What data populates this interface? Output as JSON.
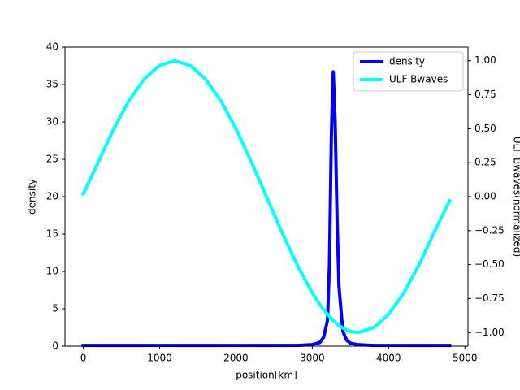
{
  "chart_data": {
    "type": "line",
    "x_label": "position[km]",
    "y_label": "density",
    "y2_label": "ULF Bwaves(normalized)",
    "x": [
      0,
      200,
      400,
      600,
      800,
      1000,
      1200,
      1400,
      1600,
      1800,
      2000,
      2200,
      2400,
      2600,
      2800,
      3000,
      3100,
      3150,
      3200,
      3225,
      3250,
      3275,
      3300,
      3325,
      3350,
      3400,
      3450,
      3500,
      3600,
      3800,
      4000,
      4200,
      4400,
      4600,
      4800
    ],
    "series": [
      {
        "name": "density",
        "color": "#0000ff",
        "axis": "y",
        "values": [
          0.1,
          0.1,
          0.1,
          0.1,
          0.1,
          0.1,
          0.1,
          0.1,
          0.1,
          0.1,
          0.1,
          0.1,
          0.1,
          0.1,
          0.1,
          0.2,
          0.5,
          1.2,
          3.5,
          11,
          28,
          36.7,
          30,
          17,
          8,
          2,
          0.8,
          0.4,
          0.2,
          0.1,
          0.1,
          0.1,
          0.1,
          0.1,
          0.1
        ]
      },
      {
        "name": "ULF Bwaves",
        "color": "#00ffff",
        "axis": "y2",
        "values": [
          0.02,
          0.259,
          0.5,
          0.707,
          0.866,
          0.966,
          1,
          0.966,
          0.866,
          0.707,
          0.5,
          0.259,
          0,
          -0.259,
          -0.5,
          -0.707,
          -0.793,
          -0.831,
          -0.866,
          -0.882,
          -0.897,
          -0.911,
          -0.924,
          -0.936,
          -0.947,
          -0.966,
          -0.981,
          -0.991,
          -1,
          -0.966,
          -0.866,
          -0.707,
          -0.5,
          -0.259,
          -0.03
        ]
      }
    ],
    "xlim": [
      -240,
      5040
    ],
    "xticks": [
      0,
      1000,
      2000,
      3000,
      4000,
      5000
    ],
    "ylim": [
      0,
      40
    ],
    "yticks": [
      0,
      5,
      10,
      15,
      20,
      25,
      30,
      35,
      40
    ],
    "y2lim": [
      -1.1,
      1.1
    ],
    "y2ticks": [
      {
        "value": -1,
        "label": "−1.00"
      },
      {
        "value": -0.75,
        "label": "−0.75"
      },
      {
        "value": -0.5,
        "label": "−0.50"
      },
      {
        "value": -0.25,
        "label": "−0.25"
      },
      {
        "value": 0,
        "label": "0.00"
      },
      {
        "value": 0.25,
        "label": "0.25"
      },
      {
        "value": 0.5,
        "label": "0.50"
      },
      {
        "value": 0.75,
        "label": "0.75"
      },
      {
        "value": 1,
        "label": "1.00"
      }
    ],
    "legend": "upper right"
  }
}
